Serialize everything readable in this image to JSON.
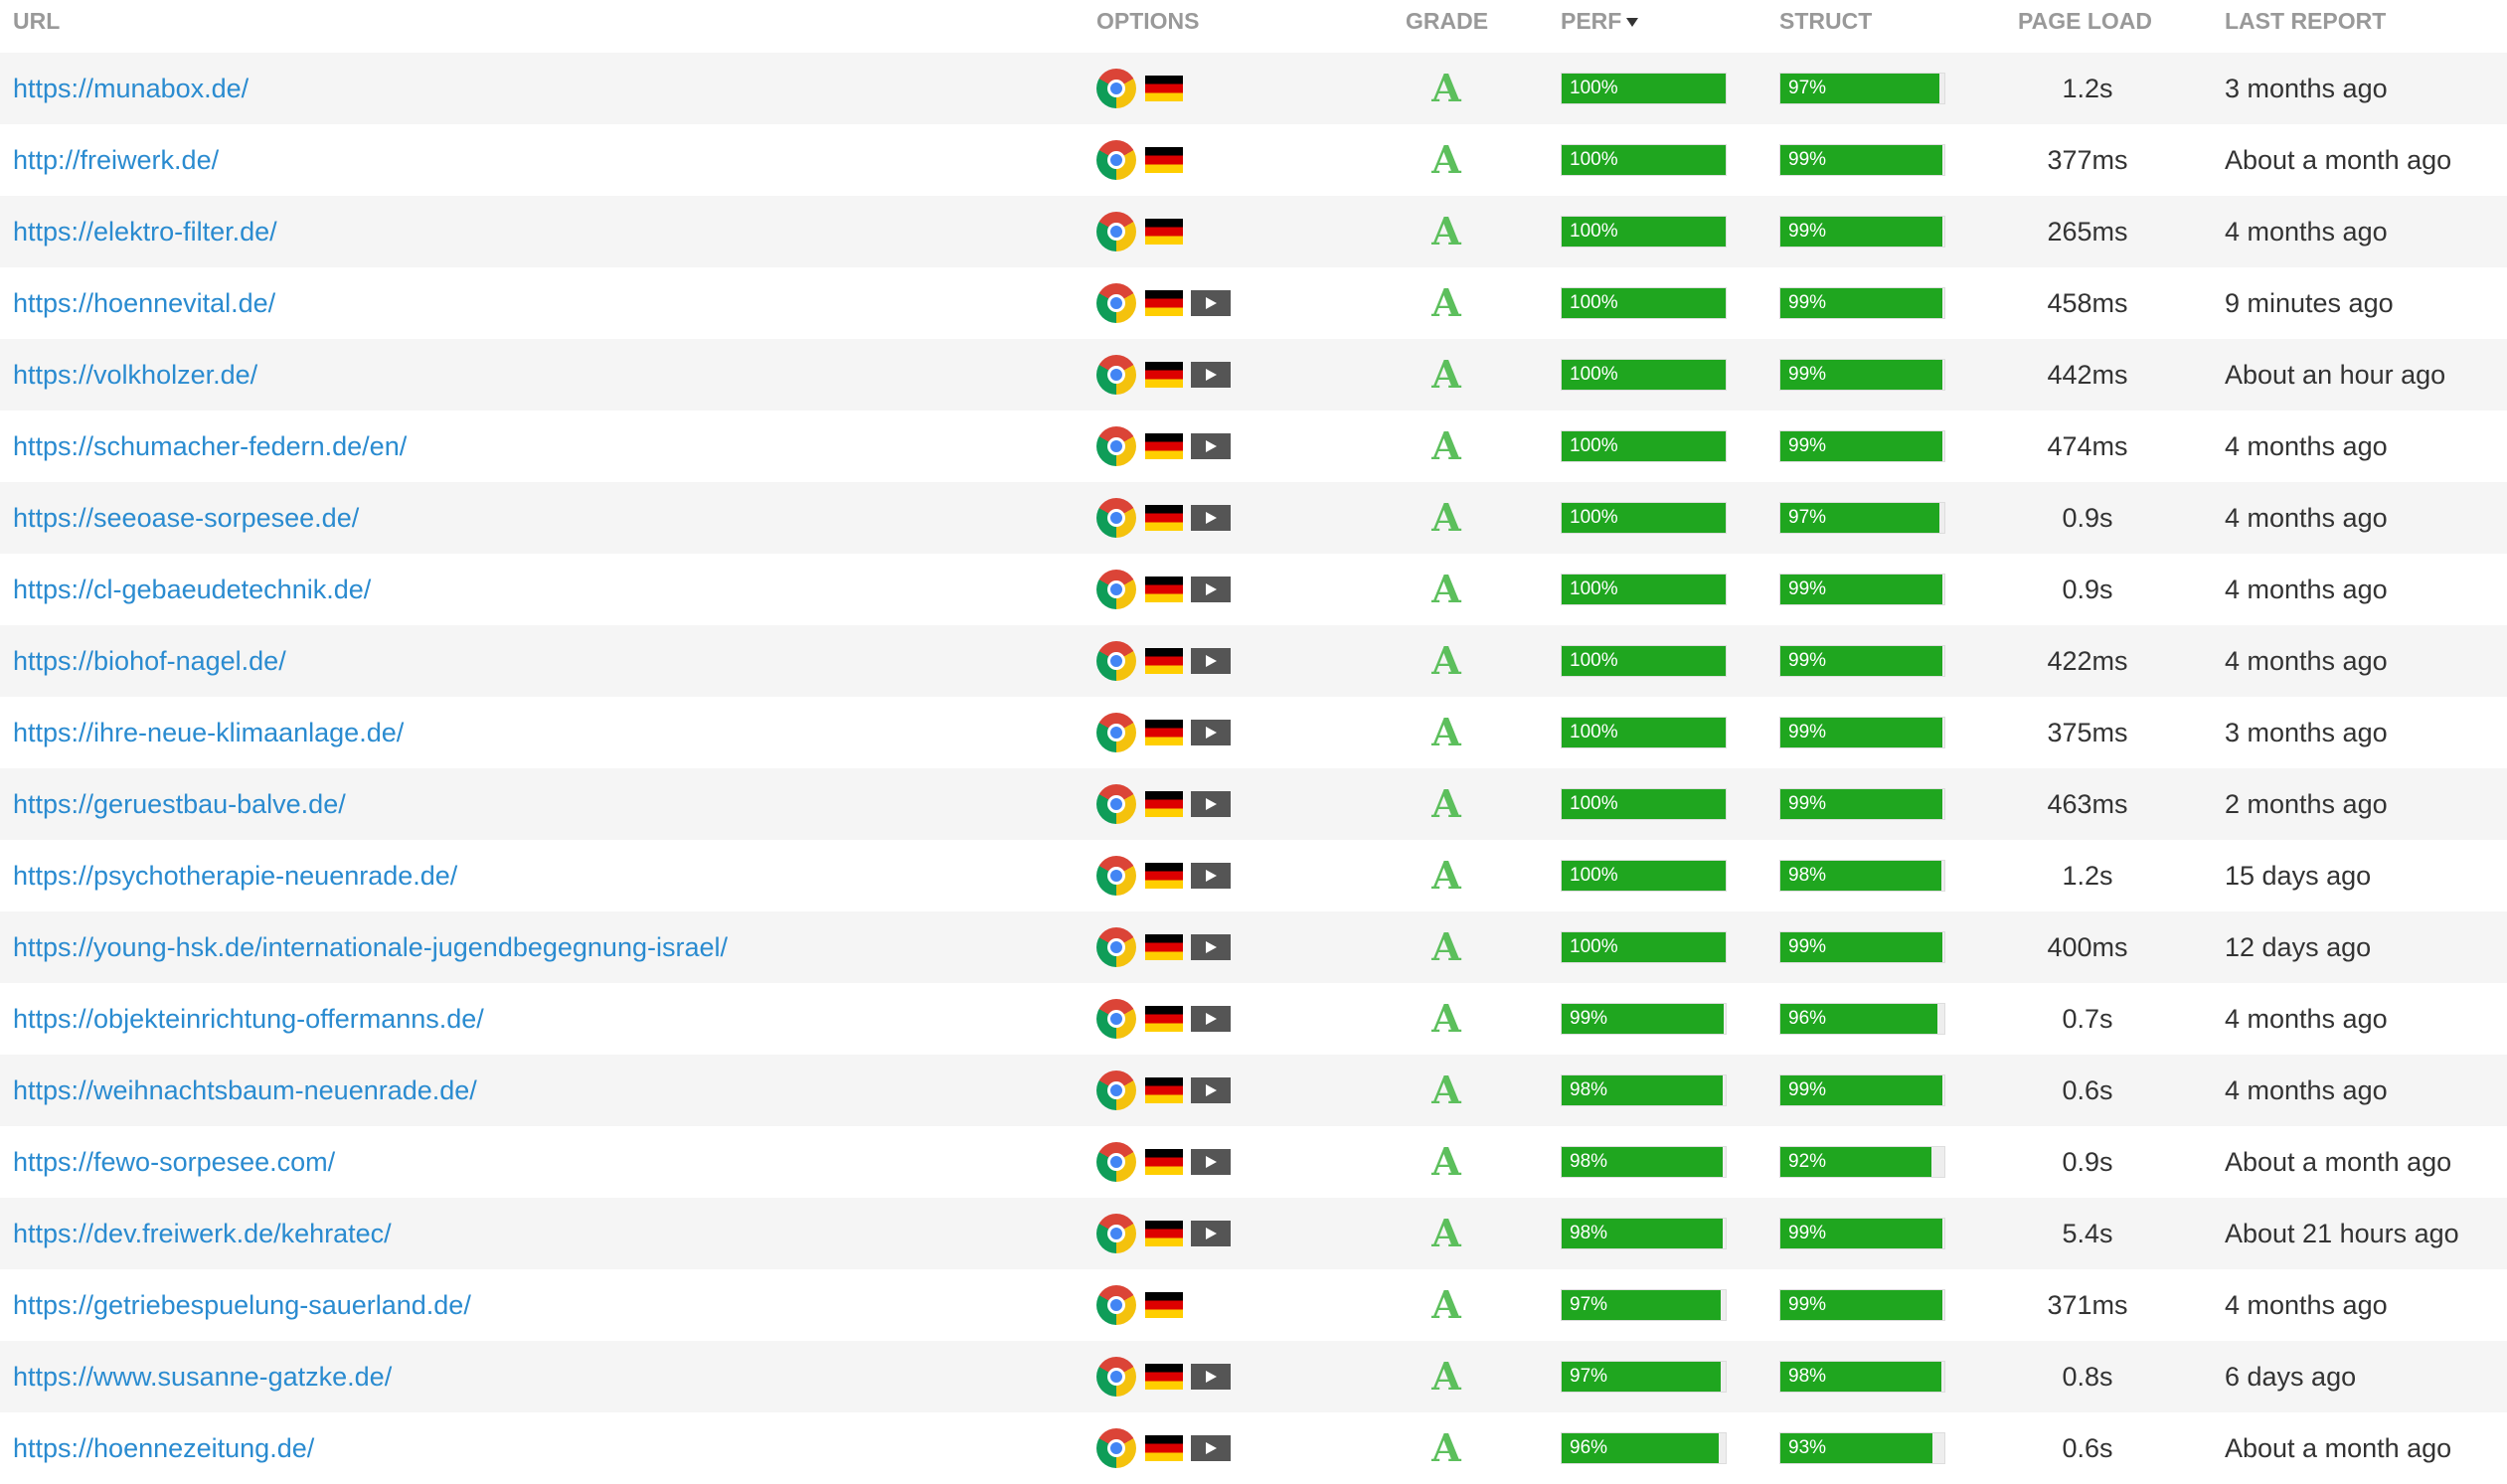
{
  "table": {
    "headers": [
      "URL",
      "OPTIONS",
      "GRADE",
      "PERF",
      "STRUCT",
      "PAGE LOAD",
      "LAST REPORT"
    ],
    "rows": [
      {
        "url": "https://munabox.de/",
        "video": false,
        "grade": "A",
        "perf": {
          "value": 100,
          "label": "100%"
        },
        "struct": {
          "value": 97,
          "label": "97%"
        },
        "load": "1.2s",
        "report": "3 months ago"
      },
      {
        "url": "http://freiwerk.de/",
        "video": false,
        "grade": "A",
        "perf": {
          "value": 100,
          "label": "100%"
        },
        "struct": {
          "value": 99,
          "label": "99%"
        },
        "load": "377ms",
        "report": "About a month ago"
      },
      {
        "url": "https://elektro-filter.de/",
        "video": false,
        "grade": "A",
        "perf": {
          "value": 100,
          "label": "100%"
        },
        "struct": {
          "value": 99,
          "label": "99%"
        },
        "load": "265ms",
        "report": "4 months ago"
      },
      {
        "url": "https://hoennevital.de/",
        "video": true,
        "grade": "A",
        "perf": {
          "value": 100,
          "label": "100%"
        },
        "struct": {
          "value": 99,
          "label": "99%"
        },
        "load": "458ms",
        "report": "9 minutes ago"
      },
      {
        "url": "https://volkholzer.de/",
        "video": true,
        "grade": "A",
        "perf": {
          "value": 100,
          "label": "100%"
        },
        "struct": {
          "value": 99,
          "label": "99%"
        },
        "load": "442ms",
        "report": "About an hour ago"
      },
      {
        "url": "https://schumacher-federn.de/en/",
        "video": true,
        "grade": "A",
        "perf": {
          "value": 100,
          "label": "100%"
        },
        "struct": {
          "value": 99,
          "label": "99%"
        },
        "load": "474ms",
        "report": "4 months ago"
      },
      {
        "url": "https://seeoase-sorpesee.de/",
        "video": true,
        "grade": "A",
        "perf": {
          "value": 100,
          "label": "100%"
        },
        "struct": {
          "value": 97,
          "label": "97%"
        },
        "load": "0.9s",
        "report": "4 months ago"
      },
      {
        "url": "https://cl-gebaeudetechnik.de/",
        "video": true,
        "grade": "A",
        "perf": {
          "value": 100,
          "label": "100%"
        },
        "struct": {
          "value": 99,
          "label": "99%"
        },
        "load": "0.9s",
        "report": "4 months ago"
      },
      {
        "url": "https://biohof-nagel.de/",
        "video": true,
        "grade": "A",
        "perf": {
          "value": 100,
          "label": "100%"
        },
        "struct": {
          "value": 99,
          "label": "99%"
        },
        "load": "422ms",
        "report": "4 months ago"
      },
      {
        "url": "https://ihre-neue-klimaanlage.de/",
        "video": true,
        "grade": "A",
        "perf": {
          "value": 100,
          "label": "100%"
        },
        "struct": {
          "value": 99,
          "label": "99%"
        },
        "load": "375ms",
        "report": "3 months ago"
      },
      {
        "url": "https://geruestbau-balve.de/",
        "video": true,
        "grade": "A",
        "perf": {
          "value": 100,
          "label": "100%"
        },
        "struct": {
          "value": 99,
          "label": "99%"
        },
        "load": "463ms",
        "report": "2 months ago"
      },
      {
        "url": "https://psychotherapie-neuenrade.de/",
        "video": true,
        "grade": "A",
        "perf": {
          "value": 100,
          "label": "100%"
        },
        "struct": {
          "value": 98,
          "label": "98%"
        },
        "load": "1.2s",
        "report": "15 days ago"
      },
      {
        "url": "https://young-hsk.de/internationale-jugendbegegnung-israel/",
        "video": true,
        "grade": "A",
        "perf": {
          "value": 100,
          "label": "100%"
        },
        "struct": {
          "value": 99,
          "label": "99%"
        },
        "load": "400ms",
        "report": "12 days ago"
      },
      {
        "url": "https://objekteinrichtung-offermanns.de/",
        "video": true,
        "grade": "A",
        "perf": {
          "value": 99,
          "label": "99%"
        },
        "struct": {
          "value": 96,
          "label": "96%"
        },
        "load": "0.7s",
        "report": "4 months ago"
      },
      {
        "url": "https://weihnachtsbaum-neuenrade.de/",
        "video": true,
        "grade": "A",
        "perf": {
          "value": 98,
          "label": "98%"
        },
        "struct": {
          "value": 99,
          "label": "99%"
        },
        "load": "0.6s",
        "report": "4 months ago"
      },
      {
        "url": "https://fewo-sorpesee.com/",
        "video": true,
        "grade": "A",
        "perf": {
          "value": 98,
          "label": "98%"
        },
        "struct": {
          "value": 92,
          "label": "92%"
        },
        "load": "0.9s",
        "report": "About a month ago"
      },
      {
        "url": "https://dev.freiwerk.de/kehratec/",
        "video": true,
        "grade": "A",
        "perf": {
          "value": 98,
          "label": "98%"
        },
        "struct": {
          "value": 99,
          "label": "99%"
        },
        "load": "5.4s",
        "report": "About 21 hours ago"
      },
      {
        "url": "https://getriebespuelung-sauerland.de/",
        "video": false,
        "grade": "A",
        "perf": {
          "value": 97,
          "label": "97%"
        },
        "struct": {
          "value": 99,
          "label": "99%"
        },
        "load": "371ms",
        "report": "4 months ago"
      },
      {
        "url": "https://www.susanne-gatzke.de/",
        "video": true,
        "grade": "A",
        "perf": {
          "value": 97,
          "label": "97%"
        },
        "struct": {
          "value": 98,
          "label": "98%"
        },
        "load": "0.8s",
        "report": "6 days ago"
      },
      {
        "url": "https://hoennezeitung.de/",
        "video": true,
        "grade": "A",
        "perf": {
          "value": 96,
          "label": "96%"
        },
        "struct": {
          "value": 93,
          "label": "93%"
        },
        "load": "0.6s",
        "report": "About a month ago"
      }
    ]
  }
}
